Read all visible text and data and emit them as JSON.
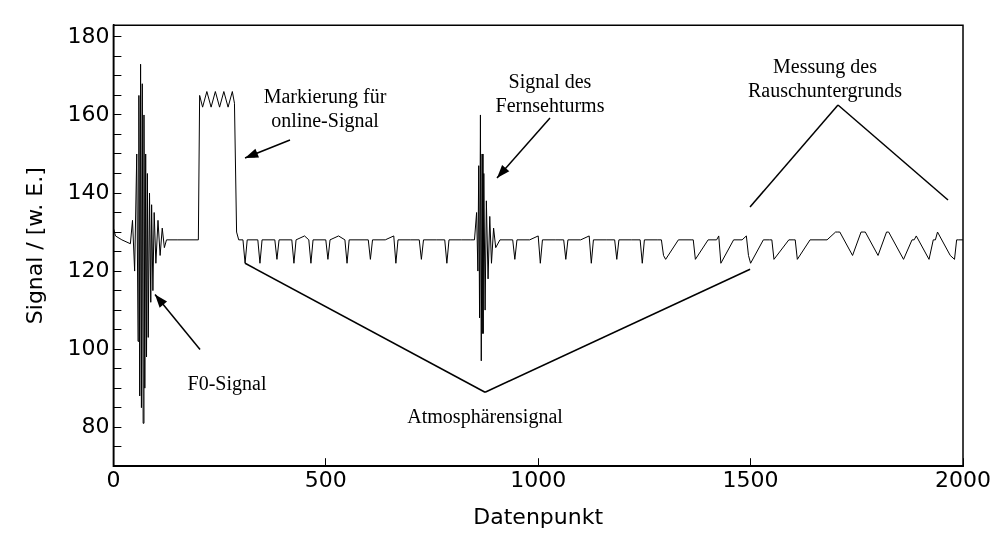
{
  "chart_data": {
    "type": "line",
    "xlabel": "Datenpunkt",
    "ylabel": "Signal / [w. E.]",
    "xlim": [
      0,
      2000
    ],
    "xticks": [
      0,
      500,
      1000,
      1500,
      2000
    ],
    "ylim": [
      70,
      183
    ],
    "yticks": [
      {
        "value": 70,
        "label": null
      },
      {
        "value": 75,
        "label": null
      },
      80,
      {
        "value": 85,
        "label": null
      },
      {
        "value": 90,
        "label": null
      },
      {
        "value": 95,
        "label": null
      },
      100,
      {
        "value": 105,
        "label": null
      },
      {
        "value": 110,
        "label": null
      },
      {
        "value": 115,
        "label": null
      },
      120,
      {
        "value": 125,
        "label": null
      },
      {
        "value": 130,
        "label": null
      },
      {
        "value": 135,
        "label": null
      },
      140,
      {
        "value": 145,
        "label": null
      },
      {
        "value": 150,
        "label": null
      },
      {
        "value": 155,
        "label": null
      },
      160,
      {
        "value": 165,
        "label": null
      },
      {
        "value": 170,
        "label": null
      },
      {
        "value": 175,
        "label": null
      },
      180
    ],
    "grid": false,
    "legend": false,
    "marker": "none",
    "line_style": "solid",
    "series": [
      {
        "color": "#000000",
        "x": [
          0,
          5,
          20,
          40,
          45,
          50,
          55,
          58,
          60,
          62,
          64,
          66,
          68,
          70,
          72,
          74,
          76,
          78,
          80,
          82,
          85,
          88,
          90,
          93,
          96,
          100,
          105,
          110,
          115,
          120,
          125,
          150,
          200,
          203,
          210,
          220,
          230,
          240,
          250,
          260,
          270,
          280,
          285,
          290,
          295,
          305,
          310,
          315,
          340,
          345,
          350,
          380,
          385,
          390,
          420,
          425,
          430,
          450,
          460,
          465,
          470,
          500,
          505,
          510,
          530,
          545,
          550,
          555,
          590,
          600,
          605,
          610,
          640,
          660,
          665,
          670,
          700,
          720,
          725,
          730,
          760,
          780,
          785,
          790,
          820,
          840,
          850,
          855,
          858,
          860,
          862,
          864,
          866,
          868,
          870,
          872,
          875,
          878,
          882,
          886,
          890,
          895,
          900,
          910,
          940,
          945,
          950,
          980,
          1000,
          1005,
          1010,
          1040,
          1060,
          1065,
          1070,
          1100,
          1120,
          1125,
          1130,
          1160,
          1180,
          1185,
          1190,
          1220,
          1240,
          1245,
          1250,
          1280,
          1290,
          1295,
          1300,
          1330,
          1360,
          1365,
          1370,
          1400,
          1420,
          1425,
          1430,
          1460,
          1480,
          1490,
          1495,
          1500,
          1530,
          1545,
          1550,
          1555,
          1590,
          1600,
          1605,
          1610,
          1640,
          1680,
          1700,
          1705,
          1710,
          1740,
          1760,
          1765,
          1770,
          1800,
          1820,
          1825,
          1830,
          1860,
          1880,
          1885,
          1890,
          1920,
          1930,
          1935,
          1940,
          1970,
          1980,
          1985,
          1990,
          2000
        ],
        "values": [
          131,
          129,
          128,
          127,
          133,
          120,
          150,
          102,
          165,
          88,
          173,
          85,
          168,
          81,
          160,
          90,
          150,
          98,
          145,
          103,
          140,
          112,
          137,
          115,
          135,
          122,
          133,
          124,
          131,
          126,
          128,
          128,
          128,
          165,
          162,
          166,
          162,
          166,
          162,
          166,
          162,
          166,
          163,
          130,
          128,
          128,
          122,
          128,
          128,
          122,
          128,
          128,
          123,
          128,
          128,
          122,
          128,
          129,
          128,
          122,
          128,
          128,
          123,
          128,
          129,
          128,
          122,
          128,
          128,
          128,
          123,
          128,
          128,
          129,
          122,
          128,
          128,
          128,
          123,
          128,
          128,
          128,
          122,
          128,
          128,
          128,
          128,
          135,
          120,
          147,
          108,
          160,
          97,
          150,
          104,
          145,
          110,
          138,
          118,
          134,
          122,
          131,
          126,
          128,
          128,
          123,
          128,
          128,
          129,
          122,
          128,
          128,
          128,
          123,
          128,
          128,
          129,
          122,
          128,
          128,
          128,
          123,
          128,
          128,
          128,
          122,
          128,
          128,
          128,
          124,
          123,
          128,
          128,
          128,
          123,
          128,
          128,
          129,
          122,
          128,
          128,
          129,
          124,
          122,
          128,
          128,
          128,
          123,
          128,
          128,
          128,
          123,
          128,
          128,
          130,
          130,
          130,
          124,
          130,
          130,
          130,
          124,
          130,
          130,
          129,
          123,
          128,
          128,
          129,
          123,
          128,
          128,
          130,
          124,
          123,
          128,
          128,
          128
        ]
      }
    ],
    "annotations": [
      "Markierung für\nonline-Signal",
      "Signal des\nFernsehturms",
      "Messung des\nRauschuntergrunds",
      {
        "text": "F0-Signal",
        "x": 98,
        "y": 114
      },
      {
        "text": "Atmosphärensignal",
        "x": 310,
        "y": 122
      }
    ]
  }
}
